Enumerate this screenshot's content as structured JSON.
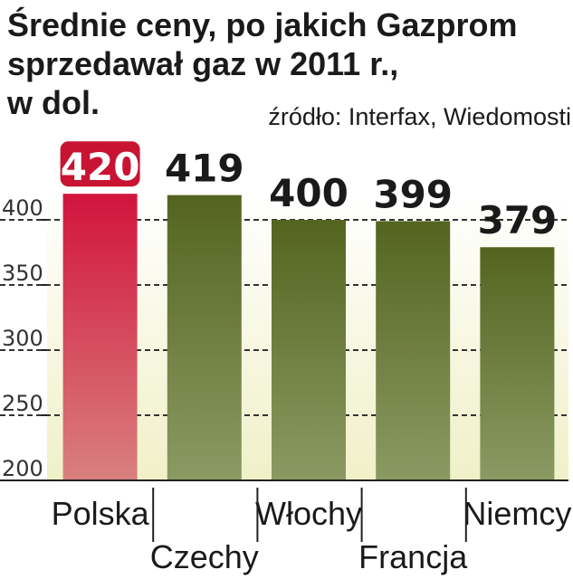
{
  "title_lines": [
    "Średnie ceny, po jakich Gazprom",
    "sprzedawał gaz w 2011 r.,",
    "w dol."
  ],
  "source": "źródło: Interfax, Wiedomosti",
  "colors": {
    "highlight_top": "#d2143c",
    "highlight_bottom": "#d98080",
    "bar_top": "#54641f",
    "bar_bottom": "#8b9a63",
    "label_badge": "#c81432",
    "gridline": "#333333",
    "plot_background": "#f0f0c8"
  },
  "chart_data": {
    "type": "bar",
    "categories": [
      "Polska",
      "Czechy",
      "Włochy",
      "Francja",
      "Niemcy"
    ],
    "values": [
      420,
      419,
      400,
      399,
      379
    ],
    "value_labels": [
      "420",
      "419",
      "400",
      "399",
      "379"
    ],
    "highlight_index": 0,
    "title": "Średnie ceny, po jakich Gazprom sprzedawał gaz w 2011 r., w dol.",
    "ylim": [
      200,
      420
    ],
    "yticks": [
      200,
      250,
      300,
      350,
      400
    ],
    "ytick_labels": [
      "200",
      "250",
      "300",
      "350",
      "400"
    ],
    "grid": true,
    "gridline_style": "dashed"
  }
}
